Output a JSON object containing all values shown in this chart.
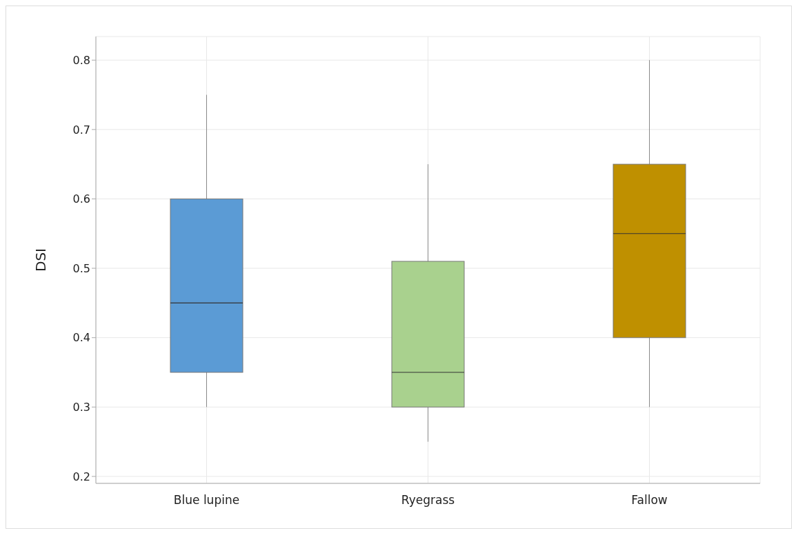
{
  "chart_data": {
    "type": "box",
    "ylabel": "DSI",
    "categories": [
      "Blue lupine",
      "Ryegrass",
      "Fallow"
    ],
    "colors": [
      "#5b9bd5",
      "#a9d18e",
      "#bf9000"
    ],
    "boxes": [
      {
        "low": 0.3,
        "q1": 0.35,
        "median": 0.45,
        "q3": 0.6,
        "high": 0.75
      },
      {
        "low": 0.25,
        "q1": 0.3,
        "median": 0.35,
        "q3": 0.51,
        "high": 0.65
      },
      {
        "low": 0.3,
        "q1": 0.4,
        "median": 0.55,
        "q3": 0.65,
        "high": 0.8
      }
    ],
    "ylim": [
      0.19,
      0.834
    ],
    "yticks": [
      0.2,
      0.3,
      0.4,
      0.5,
      0.6,
      0.7,
      0.8
    ],
    "grid": true
  }
}
